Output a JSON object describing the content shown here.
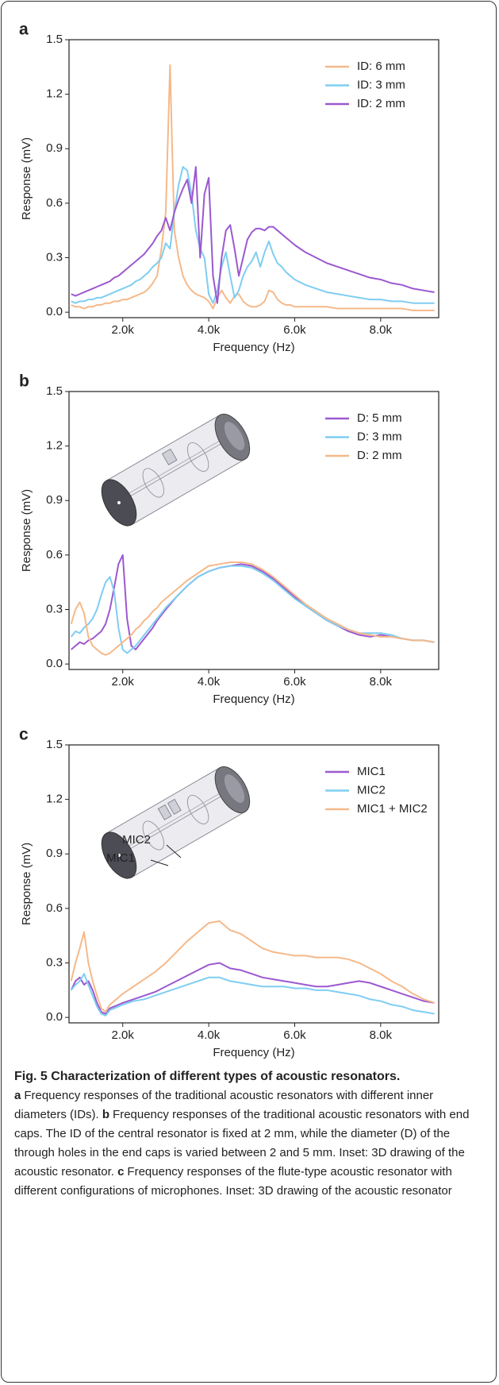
{
  "chart_data": [
    {
      "type": "line",
      "panel": "a",
      "xlabel": "Frequency (Hz)",
      "ylabel": "Response (mV)",
      "legend": "upper right",
      "xlim": [
        750,
        9350
      ],
      "ylim": [
        -0.03,
        1.5
      ],
      "xticks": [
        {
          "value": 2000,
          "label": "2.0k"
        },
        {
          "value": 4000,
          "label": "4.0k"
        },
        {
          "value": 6000,
          "label": "6.0k"
        },
        {
          "value": 8000,
          "label": "8.0k"
        }
      ],
      "yticks": [
        {
          "value": 0,
          "label": "0.0"
        },
        0.3,
        0.6,
        0.9,
        1.2,
        1.5
      ],
      "x": [
        800,
        900,
        1000,
        1100,
        1200,
        1300,
        1400,
        1500,
        1600,
        1700,
        1800,
        1900,
        2000,
        2100,
        2200,
        2300,
        2400,
        2500,
        2600,
        2700,
        2800,
        2900,
        3000,
        3100,
        3200,
        3300,
        3400,
        3500,
        3600,
        3700,
        3800,
        3900,
        4000,
        4100,
        4200,
        4300,
        4400,
        4500,
        4600,
        4700,
        4800,
        4900,
        5000,
        5100,
        5200,
        5300,
        5400,
        5500,
        5600,
        5700,
        5800,
        5900,
        6000,
        6250,
        6500,
        6750,
        7000,
        7250,
        7500,
        7750,
        8000,
        8250,
        8500,
        8750,
        9000,
        9250
      ],
      "series": [
        {
          "name": "ID: 6 mm",
          "color": "#f5b98a",
          "values": [
            0.04,
            0.03,
            0.03,
            0.02,
            0.03,
            0.03,
            0.04,
            0.04,
            0.05,
            0.05,
            0.06,
            0.06,
            0.07,
            0.07,
            0.08,
            0.09,
            0.1,
            0.11,
            0.13,
            0.16,
            0.2,
            0.35,
            0.55,
            1.36,
            0.45,
            0.3,
            0.2,
            0.15,
            0.12,
            0.1,
            0.09,
            0.08,
            0.06,
            0.02,
            0.08,
            0.12,
            0.08,
            0.05,
            0.09,
            0.1,
            0.06,
            0.04,
            0.03,
            0.03,
            0.04,
            0.06,
            0.12,
            0.11,
            0.07,
            0.05,
            0.04,
            0.04,
            0.03,
            0.03,
            0.03,
            0.03,
            0.02,
            0.02,
            0.02,
            0.02,
            0.02,
            0.02,
            0.02,
            0.01,
            0.01,
            0.01
          ]
        },
        {
          "name": "ID: 3 mm",
          "color": "#7fcdf2",
          "values": [
            0.06,
            0.05,
            0.06,
            0.06,
            0.07,
            0.07,
            0.08,
            0.08,
            0.09,
            0.1,
            0.11,
            0.12,
            0.13,
            0.14,
            0.15,
            0.17,
            0.18,
            0.2,
            0.22,
            0.25,
            0.27,
            0.3,
            0.38,
            0.35,
            0.55,
            0.7,
            0.8,
            0.78,
            0.65,
            0.45,
            0.35,
            0.3,
            0.1,
            0.05,
            0.12,
            0.25,
            0.33,
            0.2,
            0.08,
            0.12,
            0.2,
            0.25,
            0.28,
            0.33,
            0.25,
            0.33,
            0.39,
            0.32,
            0.27,
            0.25,
            0.22,
            0.2,
            0.18,
            0.15,
            0.13,
            0.11,
            0.1,
            0.09,
            0.08,
            0.07,
            0.07,
            0.06,
            0.06,
            0.05,
            0.05,
            0.05
          ]
        },
        {
          "name": "ID: 2 mm",
          "color": "#9b59d0",
          "values": [
            0.1,
            0.09,
            0.1,
            0.11,
            0.12,
            0.13,
            0.14,
            0.15,
            0.16,
            0.17,
            0.19,
            0.2,
            0.22,
            0.24,
            0.26,
            0.28,
            0.3,
            0.32,
            0.35,
            0.38,
            0.42,
            0.45,
            0.52,
            0.45,
            0.55,
            0.62,
            0.68,
            0.73,
            0.6,
            0.8,
            0.3,
            0.65,
            0.74,
            0.2,
            0.05,
            0.3,
            0.45,
            0.48,
            0.35,
            0.2,
            0.3,
            0.4,
            0.44,
            0.46,
            0.46,
            0.45,
            0.47,
            0.47,
            0.45,
            0.43,
            0.41,
            0.39,
            0.37,
            0.33,
            0.3,
            0.27,
            0.25,
            0.23,
            0.21,
            0.19,
            0.18,
            0.16,
            0.15,
            0.13,
            0.12,
            0.11
          ]
        }
      ]
    },
    {
      "type": "line",
      "panel": "b",
      "xlabel": "Frequency (Hz)",
      "ylabel": "Response (mV)",
      "legend": "upper right",
      "xlim": [
        750,
        9350
      ],
      "ylim": [
        -0.03,
        1.5
      ],
      "xticks": [
        {
          "value": 2000,
          "label": "2.0k"
        },
        {
          "value": 4000,
          "label": "4.0k"
        },
        {
          "value": 6000,
          "label": "6.0k"
        },
        {
          "value": 8000,
          "label": "8.0k"
        }
      ],
      "yticks": [
        {
          "value": 0,
          "label": "0.0"
        },
        0.3,
        0.6,
        0.9,
        1.2,
        1.5
      ],
      "x": [
        800,
        900,
        1000,
        1100,
        1200,
        1300,
        1400,
        1500,
        1600,
        1700,
        1800,
        1900,
        2000,
        2100,
        2200,
        2300,
        2400,
        2500,
        2600,
        2700,
        2800,
        2900,
        3000,
        3250,
        3500,
        3750,
        4000,
        4250,
        4500,
        4750,
        5000,
        5250,
        5500,
        5750,
        6000,
        6250,
        6500,
        6750,
        7000,
        7250,
        7500,
        7750,
        8000,
        8250,
        8500,
        8750,
        9000,
        9250
      ],
      "series": [
        {
          "name": "D: 5 mm",
          "color": "#9b59d0",
          "values": [
            0.08,
            0.1,
            0.12,
            0.11,
            0.13,
            0.14,
            0.16,
            0.18,
            0.22,
            0.3,
            0.42,
            0.55,
            0.6,
            0.25,
            0.1,
            0.08,
            0.11,
            0.14,
            0.17,
            0.2,
            0.24,
            0.27,
            0.3,
            0.37,
            0.43,
            0.48,
            0.51,
            0.53,
            0.54,
            0.55,
            0.54,
            0.51,
            0.47,
            0.42,
            0.37,
            0.32,
            0.28,
            0.24,
            0.21,
            0.18,
            0.16,
            0.15,
            0.16,
            0.15,
            0.14,
            0.13,
            0.13,
            0.12
          ]
        },
        {
          "name": "D: 3 mm",
          "color": "#7fcdf2",
          "values": [
            0.15,
            0.18,
            0.17,
            0.2,
            0.22,
            0.25,
            0.3,
            0.38,
            0.45,
            0.48,
            0.4,
            0.2,
            0.08,
            0.06,
            0.08,
            0.1,
            0.13,
            0.16,
            0.19,
            0.22,
            0.25,
            0.28,
            0.31,
            0.37,
            0.43,
            0.48,
            0.51,
            0.53,
            0.54,
            0.54,
            0.53,
            0.5,
            0.46,
            0.41,
            0.36,
            0.32,
            0.28,
            0.24,
            0.21,
            0.19,
            0.17,
            0.17,
            0.17,
            0.16,
            0.14,
            0.13,
            0.13,
            0.12
          ]
        },
        {
          "name": "D: 2 mm",
          "color": "#f5b98a",
          "values": [
            0.22,
            0.3,
            0.34,
            0.28,
            0.15,
            0.1,
            0.08,
            0.06,
            0.05,
            0.06,
            0.08,
            0.1,
            0.12,
            0.14,
            0.16,
            0.19,
            0.21,
            0.24,
            0.26,
            0.29,
            0.31,
            0.34,
            0.36,
            0.41,
            0.46,
            0.5,
            0.54,
            0.55,
            0.56,
            0.56,
            0.55,
            0.52,
            0.48,
            0.43,
            0.38,
            0.33,
            0.29,
            0.25,
            0.22,
            0.19,
            0.17,
            0.16,
            0.15,
            0.15,
            0.14,
            0.13,
            0.13,
            0.12
          ]
        }
      ]
    },
    {
      "type": "line",
      "panel": "c",
      "xlabel": "Frequency (Hz)",
      "ylabel": "Response (mV)",
      "legend": "upper right",
      "annotations": [
        "MIC2",
        "MIC1"
      ],
      "xlim": [
        750,
        9350
      ],
      "ylim": [
        -0.03,
        1.5
      ],
      "xticks": [
        {
          "value": 2000,
          "label": "2.0k"
        },
        {
          "value": 4000,
          "label": "4.0k"
        },
        {
          "value": 6000,
          "label": "6.0k"
        },
        {
          "value": 8000,
          "label": "8.0k"
        }
      ],
      "yticks": [
        {
          "value": 0,
          "label": "0.0"
        },
        0.3,
        0.6,
        0.9,
        1.2,
        1.5
      ],
      "x": [
        800,
        900,
        1000,
        1100,
        1200,
        1300,
        1400,
        1500,
        1600,
        1700,
        1800,
        1900,
        2000,
        2250,
        2500,
        2750,
        3000,
        3250,
        3500,
        3750,
        4000,
        4250,
        4500,
        4750,
        5000,
        5250,
        5500,
        5750,
        6000,
        6250,
        6500,
        6750,
        7000,
        7250,
        7500,
        7750,
        8000,
        8250,
        8500,
        8750,
        9000,
        9250
      ],
      "series": [
        {
          "name": "MIC1",
          "color": "#9b59d0",
          "values": [
            0.15,
            0.2,
            0.22,
            0.18,
            0.2,
            0.15,
            0.08,
            0.03,
            0.02,
            0.05,
            0.06,
            0.07,
            0.08,
            0.1,
            0.12,
            0.14,
            0.17,
            0.2,
            0.23,
            0.26,
            0.29,
            0.3,
            0.27,
            0.26,
            0.24,
            0.22,
            0.21,
            0.2,
            0.19,
            0.18,
            0.17,
            0.17,
            0.18,
            0.19,
            0.2,
            0.19,
            0.17,
            0.15,
            0.13,
            0.11,
            0.09,
            0.08
          ]
        },
        {
          "name": "MIC2",
          "color": "#7fcdf2",
          "values": [
            0.15,
            0.18,
            0.2,
            0.24,
            0.18,
            0.12,
            0.06,
            0.02,
            0.01,
            0.04,
            0.05,
            0.06,
            0.07,
            0.09,
            0.1,
            0.12,
            0.14,
            0.16,
            0.18,
            0.2,
            0.22,
            0.22,
            0.2,
            0.19,
            0.18,
            0.17,
            0.17,
            0.17,
            0.16,
            0.16,
            0.15,
            0.15,
            0.14,
            0.13,
            0.12,
            0.1,
            0.09,
            0.07,
            0.06,
            0.04,
            0.03,
            0.02
          ]
        },
        {
          "name": "MIC1 + MIC2",
          "color": "#f5b98a",
          "values": [
            0.2,
            0.3,
            0.38,
            0.47,
            0.3,
            0.2,
            0.12,
            0.05,
            0.03,
            0.07,
            0.09,
            0.11,
            0.13,
            0.17,
            0.21,
            0.25,
            0.3,
            0.36,
            0.42,
            0.47,
            0.52,
            0.53,
            0.48,
            0.46,
            0.42,
            0.38,
            0.36,
            0.35,
            0.34,
            0.34,
            0.33,
            0.33,
            0.33,
            0.32,
            0.3,
            0.27,
            0.24,
            0.2,
            0.17,
            0.13,
            0.1,
            0.08
          ]
        }
      ]
    }
  ],
  "caption": {
    "title": "Fig. 5 Characterization of different types of acoustic resonators.",
    "parts": [
      {
        "label": "a",
        "text": "Frequency responses of the traditional acoustic resonators with different inner diameters (IDs)."
      },
      {
        "label": "b",
        "text": "Frequency responses of the traditional acoustic resonators with end caps. The ID of the central resonator is fixed at 2 mm, while the diameter (D) of the through holes in the end caps is varied between 2 and 5 mm. Inset: 3D drawing of the acoustic resonator."
      },
      {
        "label": "c",
        "text": "Frequency responses of the flute-type acoustic resonator with different configurations of microphones. Inset: 3D drawing of the acoustic resonator"
      }
    ]
  }
}
